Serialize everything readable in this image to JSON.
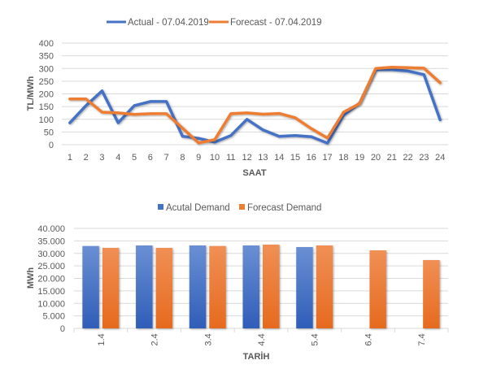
{
  "colors": {
    "actual": "#4472C4",
    "forecast": "#ED7D31",
    "grid": "#D9D9D9",
    "text": "#595959"
  },
  "chart_data": [
    {
      "type": "line",
      "title": "",
      "xlabel": "SAAT",
      "ylabel": "TL/MWh",
      "ylim": [
        0,
        400
      ],
      "yticks": [
        "0",
        "50",
        "100",
        "150",
        "200",
        "250",
        "300",
        "350",
        "400"
      ],
      "ytick_values": [
        0,
        50,
        100,
        150,
        200,
        250,
        300,
        350,
        400
      ],
      "categories": [
        "1",
        "2",
        "3",
        "4",
        "5",
        "6",
        "7",
        "8",
        "9",
        "10",
        "11",
        "12",
        "13",
        "14",
        "15",
        "16",
        "17",
        "18",
        "19",
        "20",
        "21",
        "22",
        "23",
        "24"
      ],
      "legend_position": "top",
      "grid": true,
      "series": [
        {
          "name": "Actual - 07.04.2019",
          "color": "#4472C4",
          "values": [
            86,
            154,
            212,
            86,
            154,
            170,
            170,
            33,
            25,
            10,
            36,
            100,
            58,
            33,
            36,
            31,
            6,
            116,
            164,
            295,
            295,
            290,
            276,
            98
          ]
        },
        {
          "name": "Forecast - 07.04.2019",
          "color": "#ED7D31",
          "values": [
            180,
            180,
            128,
            125,
            119,
            122,
            122,
            65,
            7,
            20,
            122,
            125,
            120,
            123,
            106,
            63,
            26,
            128,
            162,
            300,
            305,
            303,
            301,
            244
          ]
        }
      ]
    },
    {
      "type": "bar",
      "title": "",
      "xlabel": "TARİH",
      "ylabel": "MWh",
      "ylim": [
        0,
        40000
      ],
      "yticks": [
        "0",
        "5.000",
        "10.000",
        "15.000",
        "20.000",
        "25.000",
        "30.000",
        "35.000",
        "40.000"
      ],
      "ytick_values": [
        0,
        5000,
        10000,
        15000,
        20000,
        25000,
        30000,
        35000,
        40000
      ],
      "categories": [
        "1.4",
        "2.4",
        "3.4",
        "4.4",
        "5.4",
        "6.4",
        "7.4"
      ],
      "legend_position": "top",
      "grid": true,
      "series": [
        {
          "name": "Acutal Demand",
          "color": "#4472C4",
          "values": [
            32940,
            33170,
            33170,
            33170,
            32520,
            null,
            null
          ]
        },
        {
          "name": "Forecast Demand",
          "color": "#ED7D31",
          "values": [
            32200,
            32200,
            32940,
            33500,
            33170,
            31220,
            27320
          ]
        }
      ]
    }
  ]
}
